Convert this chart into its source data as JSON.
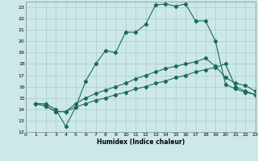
{
  "xlabel": "Humidex (Indice chaleur)",
  "bg_color": "#cce8e8",
  "grid_color": "#aacccc",
  "line_color": "#1a6b5a",
  "xlim": [
    0,
    23
  ],
  "ylim": [
    12,
    23.5
  ],
  "yticks": [
    12,
    13,
    14,
    15,
    16,
    17,
    18,
    19,
    20,
    21,
    22,
    23
  ],
  "xticks": [
    0,
    1,
    2,
    3,
    4,
    5,
    6,
    7,
    8,
    9,
    10,
    11,
    12,
    13,
    14,
    15,
    16,
    17,
    18,
    19,
    20,
    21,
    22,
    23
  ],
  "line1_x": [
    1,
    2,
    3,
    4,
    5,
    6,
    7,
    8,
    9,
    10,
    11,
    12,
    13,
    14,
    15,
    16,
    17,
    18,
    19,
    20,
    21,
    22,
    23
  ],
  "line1_y": [
    14.5,
    14.5,
    14.0,
    12.5,
    14.2,
    16.5,
    18.0,
    19.2,
    19.0,
    20.8,
    20.8,
    21.5,
    23.2,
    23.3,
    23.1,
    23.3,
    21.8,
    21.8,
    20.0,
    16.2,
    15.8,
    15.5,
    15.3
  ],
  "line2_x": [
    1,
    2,
    3,
    4,
    5,
    6,
    7,
    8,
    9,
    10,
    11,
    12,
    13,
    14,
    15,
    16,
    17,
    18,
    19,
    20,
    21,
    22,
    23
  ],
  "line2_y": [
    14.5,
    14.3,
    13.8,
    13.8,
    14.2,
    14.5,
    14.8,
    15.0,
    15.3,
    15.5,
    15.8,
    16.0,
    16.3,
    16.5,
    16.8,
    17.0,
    17.3,
    17.5,
    17.7,
    18.0,
    16.0,
    15.6,
    15.3
  ],
  "line3_x": [
    1,
    2,
    3,
    4,
    5,
    6,
    7,
    8,
    9,
    10,
    11,
    12,
    13,
    14,
    15,
    16,
    17,
    18,
    19,
    20,
    21,
    22,
    23
  ],
  "line3_y": [
    14.5,
    14.3,
    13.8,
    13.8,
    14.5,
    15.0,
    15.4,
    15.7,
    16.0,
    16.3,
    16.7,
    17.0,
    17.3,
    17.6,
    17.8,
    18.0,
    18.2,
    18.5,
    17.8,
    16.8,
    16.3,
    16.1,
    15.6
  ]
}
